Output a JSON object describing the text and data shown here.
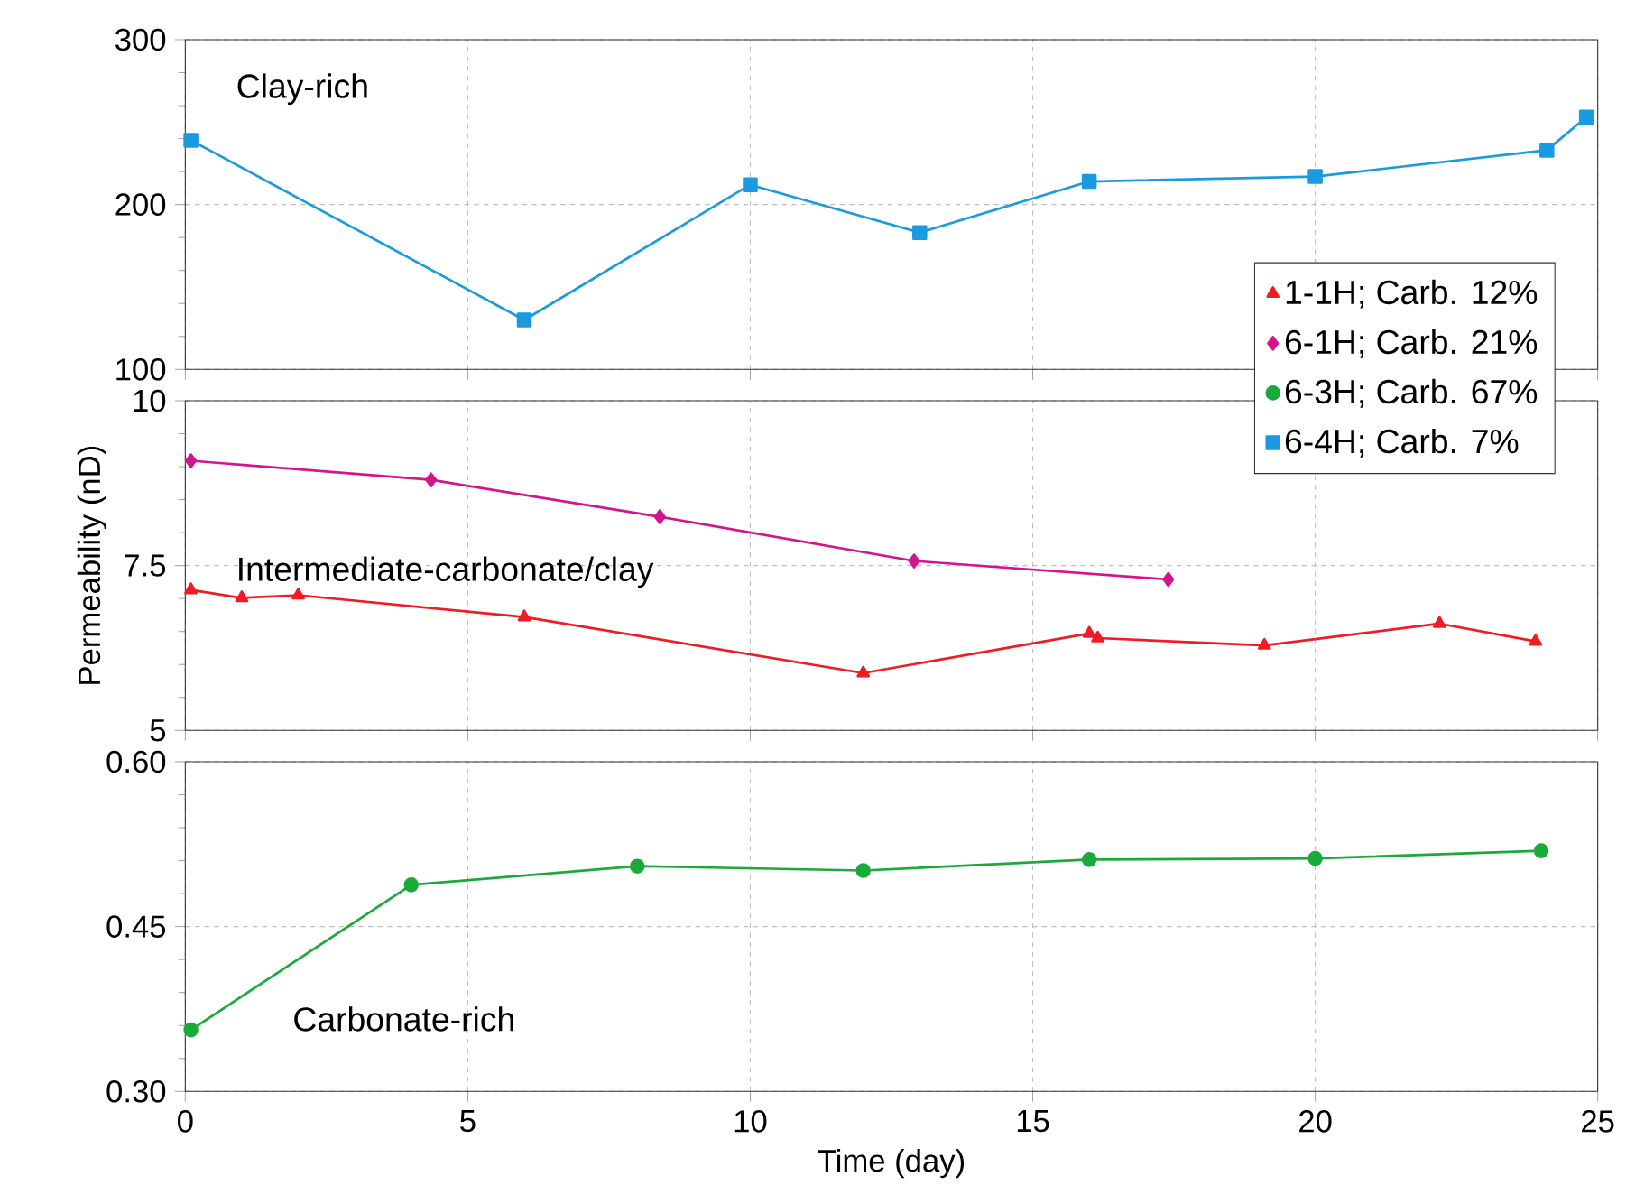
{
  "chart_data": [
    {
      "type": "line",
      "xlim": [
        0,
        25
      ],
      "xticks": [
        0,
        5,
        10,
        15,
        20,
        25
      ],
      "ylim": [
        100,
        300
      ],
      "yticks": [
        100,
        200,
        300
      ],
      "tick_labels": "y",
      "grid": true,
      "annotations": [
        "Clay-rich"
      ],
      "series": [
        {
          "name": "6-4H; Carb. 7%",
          "color": "#1a9ae0",
          "marker": "square",
          "line_style": "solid",
          "x": [
            0.1,
            6.0,
            10.0,
            13.0,
            16.0,
            20.0,
            24.1,
            24.8
          ],
          "values": [
            239,
            130,
            212,
            183,
            214,
            217,
            233,
            253
          ]
        }
      ]
    },
    {
      "type": "line",
      "xlim": [
        0,
        25
      ],
      "xticks": [
        0,
        5,
        10,
        15,
        20,
        25
      ],
      "ylim": [
        5,
        10
      ],
      "yticks": [
        5,
        7.5,
        10
      ],
      "tick_labels": "y",
      "grid": true,
      "ylabel": "Permeability (nD)",
      "legend": "top right",
      "annotations": [
        "Intermediate-carbonate/clay"
      ],
      "series": [
        {
          "name": "1-1H; Carb. 12%",
          "color": "#ee1c24",
          "marker": "triangle",
          "line_style": "solid",
          "x": [
            0.1,
            1.0,
            2.0,
            6.0,
            12.0,
            16.0,
            16.15,
            19.1,
            22.2,
            23.9
          ],
          "values": [
            7.13,
            7.01,
            7.05,
            6.72,
            5.87,
            6.47,
            6.4,
            6.29,
            6.62,
            6.35
          ]
        },
        {
          "name": "6-1H; Carb. 21%",
          "color": "#d4148c",
          "marker": "diamond",
          "line_style": "solid",
          "x": [
            0.1,
            4.35,
            8.4,
            12.9,
            17.4
          ],
          "values": [
            9.09,
            8.8,
            8.24,
            7.57,
            7.29
          ]
        }
      ]
    },
    {
      "type": "line",
      "xlim": [
        0,
        25
      ],
      "xticks": [
        0,
        5,
        10,
        15,
        20,
        25
      ],
      "ylim": [
        0.3,
        0.6
      ],
      "yticks": [
        {
          "value": 0.3,
          "label": "0.30"
        },
        0.45,
        {
          "value": 0.6,
          "label": "0.60"
        }
      ],
      "grid": true,
      "xlabel": "Time (day)",
      "annotations": [
        "Carbonate-rich"
      ],
      "series": [
        {
          "name": "6-3H; Carb. 67%",
          "color": "#1aaa3a",
          "marker": "circle",
          "line_style": "solid",
          "x": [
            0.1,
            4,
            8,
            12,
            16,
            20,
            24
          ],
          "values": [
            0.356,
            0.488,
            0.505,
            0.501,
            0.511,
            0.512,
            0.519
          ]
        }
      ]
    }
  ]
}
